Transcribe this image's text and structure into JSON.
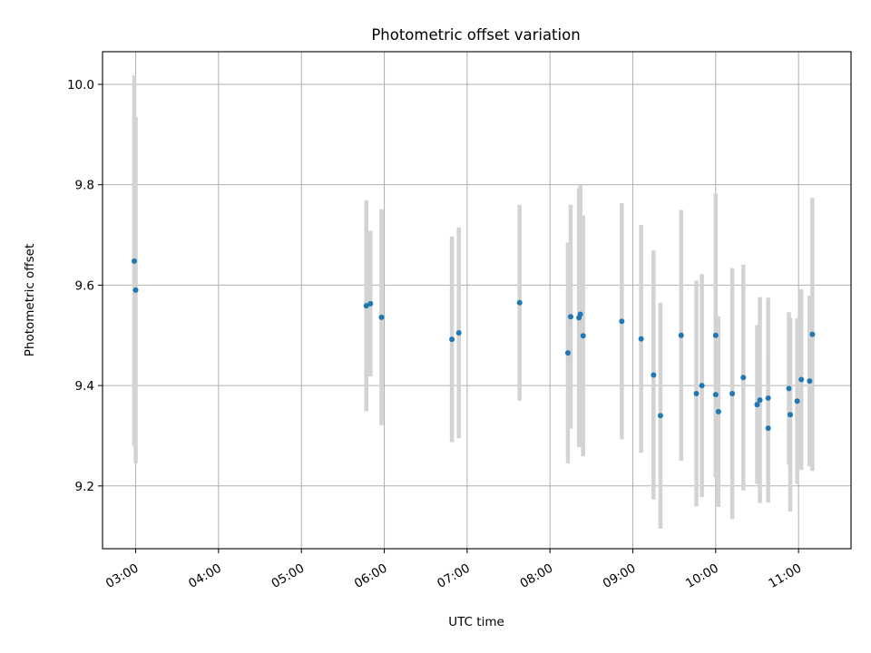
{
  "chart_data": {
    "type": "scatter",
    "title": "Photometric offset variation",
    "xlabel": "UTC time",
    "ylabel": "Photometric offset",
    "x_tick_labels": [
      "03:00",
      "04:00",
      "05:00",
      "06:00",
      "07:00",
      "08:00",
      "09:00",
      "10:00",
      "11:00"
    ],
    "y_ticks": [
      "9.2",
      "9.4",
      "9.6",
      "9.8",
      "10.0"
    ],
    "xlim": [
      "02:36",
      "11:38"
    ],
    "ylim": [
      9.075,
      10.065
    ],
    "grid": true,
    "colors": {
      "point": "#1f77b4",
      "errorbar": "#d3d3d3"
    },
    "points": [
      {
        "x": "02:59",
        "y": 9.648,
        "err": 0.37
      },
      {
        "x": "03:00",
        "y": 9.59,
        "err": 0.345
      },
      {
        "x": "05:47",
        "y": 9.559,
        "err": 0.21
      },
      {
        "x": "05:50",
        "y": 9.563,
        "err": 0.145
      },
      {
        "x": "05:58",
        "y": 9.536,
        "err": 0.215
      },
      {
        "x": "06:49",
        "y": 9.492,
        "err": 0.205
      },
      {
        "x": "06:54",
        "y": 9.505,
        "err": 0.21
      },
      {
        "x": "07:38",
        "y": 9.565,
        "err": 0.195
      },
      {
        "x": "08:13",
        "y": 9.465,
        "err": 0.22
      },
      {
        "x": "08:15",
        "y": 9.537,
        "err": 0.223
      },
      {
        "x": "08:21",
        "y": 9.535,
        "err": 0.258
      },
      {
        "x": "08:22",
        "y": 9.542,
        "err": 0.258
      },
      {
        "x": "08:24",
        "y": 9.499,
        "err": 0.24
      },
      {
        "x": "08:52",
        "y": 9.528,
        "err": 0.235
      },
      {
        "x": "09:06",
        "y": 9.493,
        "err": 0.227
      },
      {
        "x": "09:15",
        "y": 9.421,
        "err": 0.248
      },
      {
        "x": "09:20",
        "y": 9.34,
        "err": 0.225
      },
      {
        "x": "09:35",
        "y": 9.5,
        "err": 0.25
      },
      {
        "x": "09:46",
        "y": 9.384,
        "err": 0.225
      },
      {
        "x": "09:50",
        "y": 9.4,
        "err": 0.222
      },
      {
        "x": "10:00",
        "y": 9.5,
        "err": 0.282
      },
      {
        "x": "10:00",
        "y": 9.382,
        "err": 0.165
      },
      {
        "x": "10:02",
        "y": 9.348,
        "err": 0.19
      },
      {
        "x": "10:12",
        "y": 9.384,
        "err": 0.25
      },
      {
        "x": "10:20",
        "y": 9.416,
        "err": 0.225
      },
      {
        "x": "10:30",
        "y": 9.362,
        "err": 0.158
      },
      {
        "x": "10:32",
        "y": 9.371,
        "err": 0.205
      },
      {
        "x": "10:38",
        "y": 9.315,
        "err": 0.148
      },
      {
        "x": "10:38",
        "y": 9.375,
        "err": 0.2
      },
      {
        "x": "10:53",
        "y": 9.394,
        "err": 0.152
      },
      {
        "x": "10:54",
        "y": 9.342,
        "err": 0.193
      },
      {
        "x": "10:59",
        "y": 9.369,
        "err": 0.165
      },
      {
        "x": "11:02",
        "y": 9.412,
        "err": 0.18
      },
      {
        "x": "11:08",
        "y": 9.409,
        "err": 0.17
      },
      {
        "x": "11:10",
        "y": 9.502,
        "err": 0.272
      }
    ]
  }
}
